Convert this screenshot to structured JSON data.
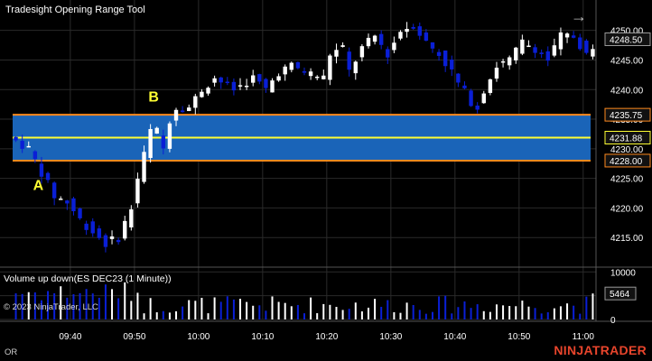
{
  "header": {
    "title": "Tradesight Opening Range Tool",
    "arrow_icon": "arrow-right-icon"
  },
  "chart_data": {
    "type": "candlestick",
    "instrument": "ES DEC23 (1 Minute)",
    "y_range": [
      4210,
      4253
    ],
    "y_ticks": [
      4215,
      4220,
      4225,
      4230,
      4235,
      4240,
      4245,
      4250
    ],
    "price_badges": [
      "4248.50",
      "4235.75",
      "4231.88",
      "4228.00"
    ],
    "x_range": [
      "09:31",
      "11:02"
    ],
    "x_ticks": [
      "09:40",
      "09:50",
      "10:00",
      "10:10",
      "10:20",
      "10:30",
      "10:40",
      "10:50",
      "11:00"
    ],
    "opening_range": {
      "high": 4235.75,
      "mid": 4231.88,
      "low": 4228.0,
      "start": "09:31",
      "end": "11:02"
    },
    "annotations": [
      {
        "text": "A",
        "x": "09:35",
        "y": 4223
      },
      {
        "text": "B",
        "x": "09:53",
        "y": 4238
      }
    ],
    "colors": {
      "up": "#ffffff",
      "down": "#0a1fd6",
      "range_fill": "#1a64b8",
      "range_edge": "#ff8a1e",
      "range_mid": "#ffff33"
    },
    "volume": {
      "title": "Volume up down(ES DEC23 (1 Minute))",
      "y_ticks": [
        0,
        5000,
        10000
      ],
      "y_range": [
        0,
        11000
      ],
      "badge": "5464"
    }
  },
  "footer": {
    "copyright": "© 2023 NinjaTrader, LLC",
    "or_label": "OR",
    "brand": "NINJATRADER"
  }
}
